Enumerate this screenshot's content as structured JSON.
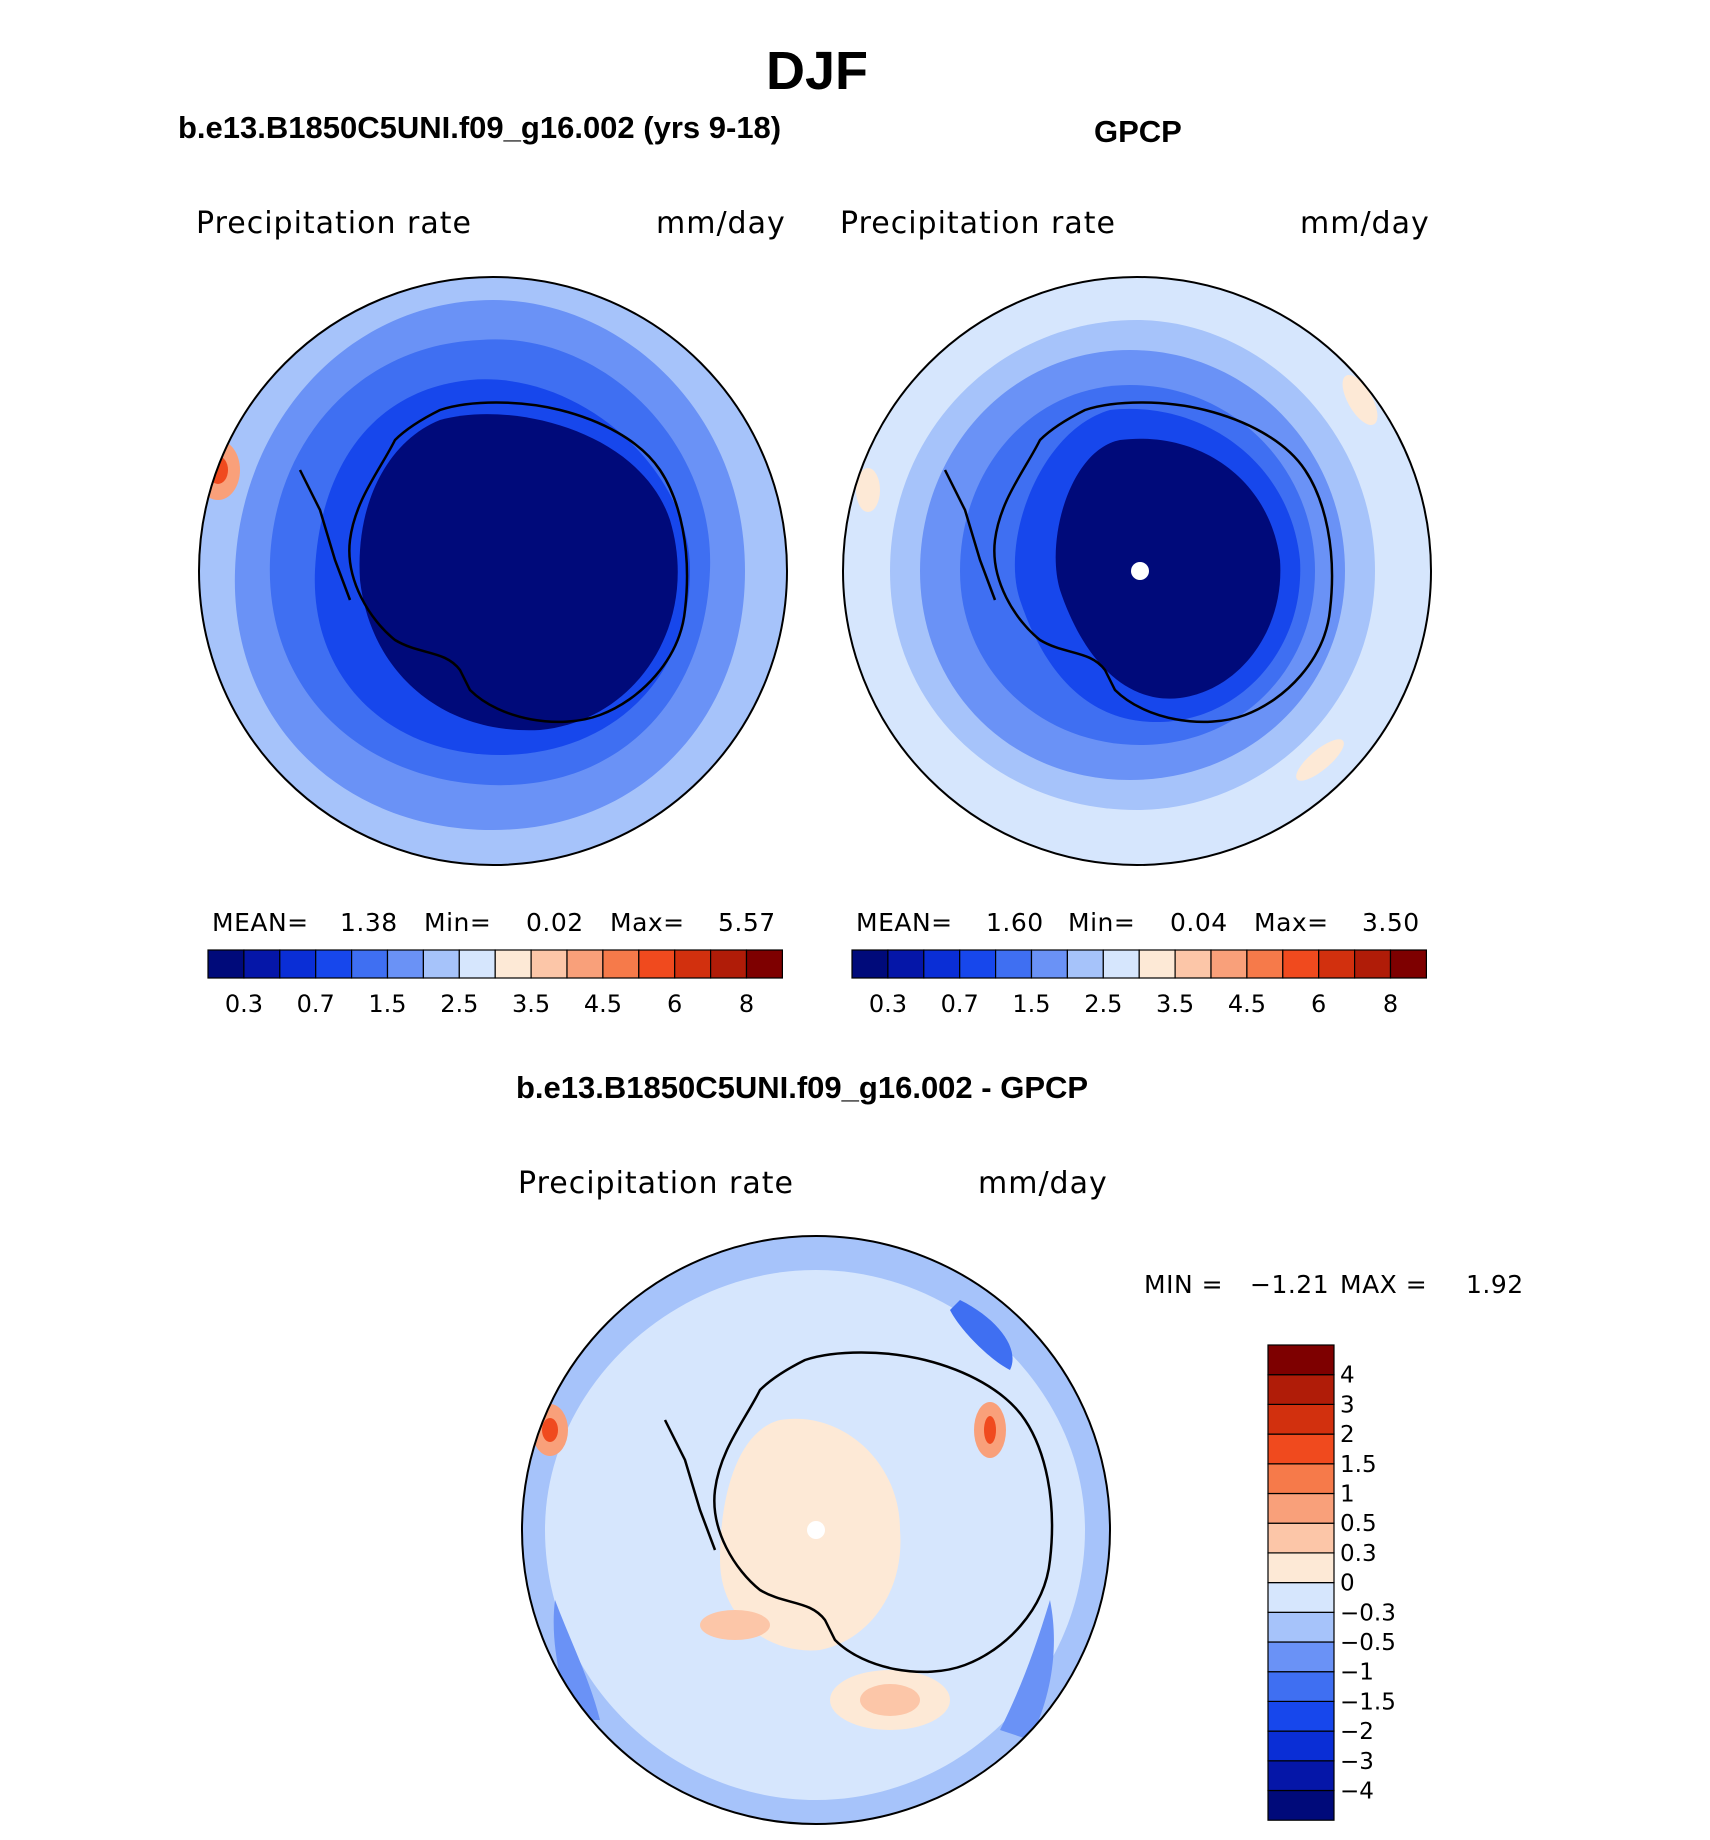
{
  "figure": {
    "season_title": "DJF",
    "model_title": "b.e13.B1850C5UNI.f09_g16.002 (yrs 9-18)",
    "obs_title": "GPCP",
    "diff_title": "b.e13.B1850C5UNI.f09_g16.002 - GPCP"
  },
  "panels": {
    "model": {
      "variable": "Precipitation  rate",
      "units": "mm/day",
      "mean_label": "MEAN=",
      "mean": "1.38",
      "min_label": "Min=",
      "min": "0.02",
      "max_label": "Max=",
      "max": "5.57"
    },
    "obs": {
      "variable": "Precipitation  rate",
      "units": "mm/day",
      "mean_label": "MEAN=",
      "mean": "1.60",
      "min_label": "Min=",
      "min": "0.04",
      "max_label": "Max=",
      "max": "3.50"
    },
    "diff": {
      "variable": "Precipitation  rate",
      "units": "mm/day",
      "min_label": "MIN =",
      "min": "−1.21",
      "max_label": "MAX =",
      "max": "1.92"
    }
  },
  "colorbar_abs": {
    "colors": [
      "#000a7a",
      "#0516a8",
      "#0a2ed6",
      "#1747ec",
      "#3f6ff2",
      "#6a92f6",
      "#a6c3fa",
      "#d6e6fd",
      "#fde9d6",
      "#fcc6a8",
      "#f9a07a",
      "#f67a4a",
      "#f04a1e",
      "#d2300e",
      "#b01c08",
      "#7e0000"
    ],
    "tick_labels": [
      "0.3",
      "0.7",
      "1.5",
      "2.5",
      "3.5",
      "4.5",
      "6",
      "8"
    ]
  },
  "colorbar_diff": {
    "colors": [
      "#000a7a",
      "#0516a8",
      "#0a2ed6",
      "#1747ec",
      "#3f6ff2",
      "#6a92f6",
      "#a6c3fa",
      "#d6e6fd",
      "#fde9d6",
      "#fcc6a8",
      "#f9a07a",
      "#f67a4a",
      "#f04a1e",
      "#d2300e",
      "#b01c08",
      "#7e0000"
    ],
    "tick_labels": [
      "−4",
      "−3",
      "−2",
      "−1.5",
      "−1",
      "−0.5",
      "−0.3",
      "0",
      "0.3",
      "0.5",
      "1",
      "1.5",
      "2",
      "3",
      "4"
    ]
  }
}
